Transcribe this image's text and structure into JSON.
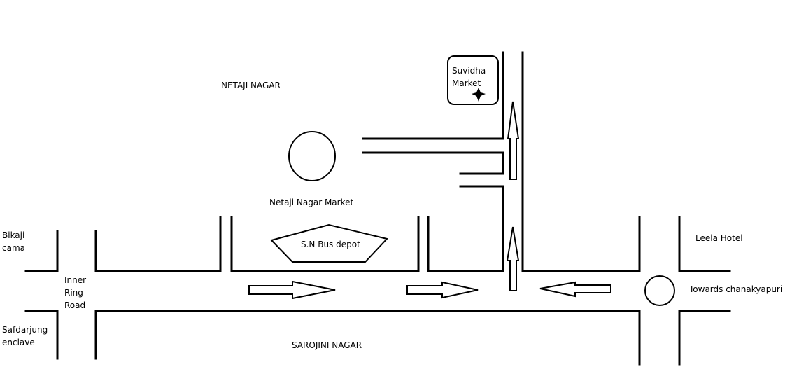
{
  "labels": {
    "netaji_nagar": "NETAJI NAGAR",
    "netaji_nagar_market": "Netaji Nagar Market",
    "suvidha_market": "Suvidha\nMarket",
    "sn_bus_depot": "S.N Bus depot",
    "bikaji_cama": "Bikaji\ncama",
    "inner_ring_road": "Inner\nRing\nRoad",
    "leela_hotel": "Leela Hotel",
    "towards_chanakyapuri": "Towards chanakyapuri",
    "safdarjung_enclave": "Safdarjung\nenclave",
    "sarojini_nagar": "SAROJINI NAGAR"
  },
  "colors": {
    "ink": "#000000",
    "background": "#ffffff"
  },
  "icons": {
    "suvidha_market_marker": "four-point-star"
  }
}
